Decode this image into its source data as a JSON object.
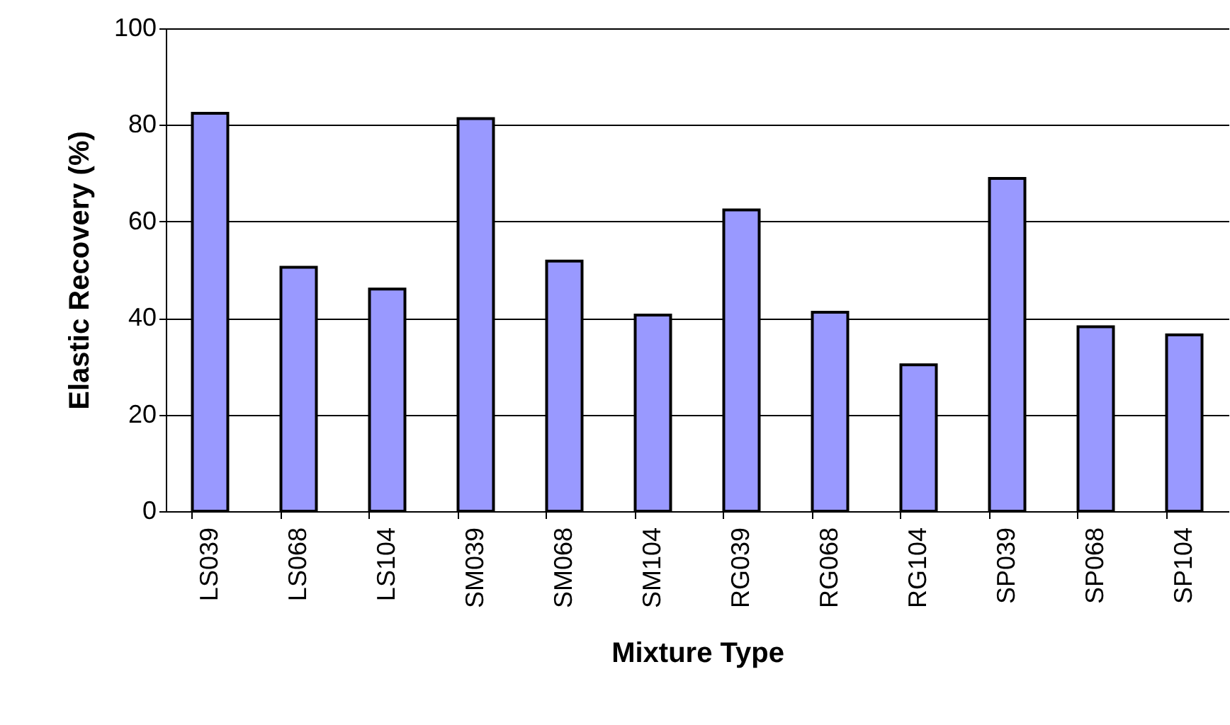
{
  "chart_data": {
    "type": "bar",
    "xlabel": "Mixture Type",
    "ylabel": "Elastic Recovery (%)",
    "categories": [
      "LS039",
      "LS068",
      "LS104",
      "SM039",
      "SM068",
      "SM104",
      "RG039",
      "RG068",
      "RG104",
      "SP039",
      "SP068",
      "SP104"
    ],
    "values": [
      82.4,
      50.5,
      46.0,
      81.3,
      51.8,
      40.6,
      62.4,
      41.2,
      30.3,
      68.9,
      38.2,
      36.5
    ],
    "color": "#9999ff",
    "ylim": [
      0,
      100
    ],
    "yticks": [
      0,
      20,
      40,
      60,
      80,
      100
    ],
    "grid": "y"
  }
}
